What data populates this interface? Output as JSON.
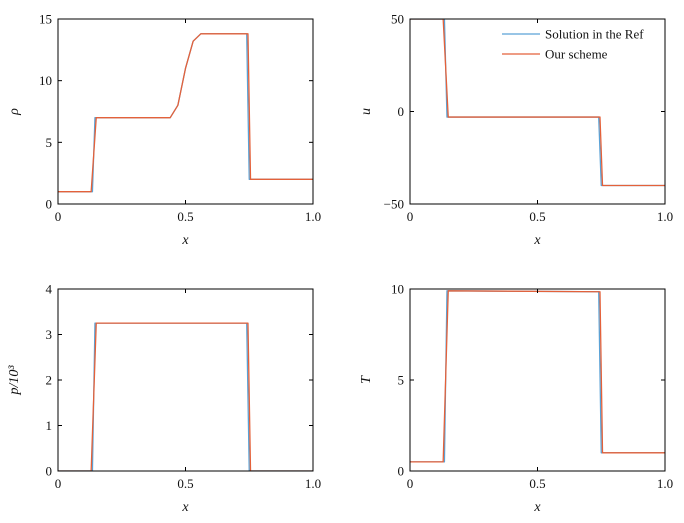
{
  "colors": {
    "ref": "#5aa2d6",
    "ours": "#e4613a"
  },
  "chart_data": [
    {
      "type": "line",
      "panel": "rho",
      "xlabel": "x",
      "ylabel": "ρ",
      "xlim": [
        0,
        1
      ],
      "ylim": [
        0,
        15
      ],
      "xticks": [
        0,
        0.5,
        1
      ],
      "xtick_labels": [
        "0",
        "0.5",
        "1.0"
      ],
      "yticks": [
        0,
        5,
        10,
        15
      ],
      "ytick_labels": [
        "0",
        "5",
        "10",
        "15"
      ],
      "legend": null,
      "series": [
        {
          "name": "Solution in the Ref",
          "color_key": "ref",
          "x": [
            0,
            0.135,
            0.145,
            0.44,
            0.47,
            0.5,
            0.53,
            0.56,
            0.73,
            0.74,
            0.75,
            1.0
          ],
          "y": [
            1.0,
            1.0,
            7.0,
            7.0,
            8.0,
            11.0,
            13.2,
            13.8,
            13.8,
            13.8,
            2.0,
            2.0
          ]
        },
        {
          "name": "Our scheme",
          "color_key": "ours",
          "x": [
            0,
            0.13,
            0.15,
            0.44,
            0.47,
            0.5,
            0.53,
            0.56,
            0.73,
            0.745,
            0.755,
            1.0
          ],
          "y": [
            1.0,
            1.0,
            7.0,
            7.0,
            8.0,
            11.0,
            13.2,
            13.8,
            13.8,
            13.8,
            2.0,
            2.0
          ]
        }
      ]
    },
    {
      "type": "line",
      "panel": "u",
      "xlabel": "x",
      "ylabel": "u",
      "xlim": [
        0,
        1
      ],
      "ylim": [
        -50,
        50
      ],
      "xticks": [
        0,
        0.5,
        1
      ],
      "xtick_labels": [
        "0",
        "0.5",
        "1.0"
      ],
      "yticks": [
        -50,
        0,
        50
      ],
      "ytick_labels": [
        "−50",
        "0",
        "50"
      ],
      "legend": {
        "position": "top-right",
        "entries": [
          "Solution in the Ref",
          "Our scheme"
        ]
      },
      "series": [
        {
          "name": "Solution in the Ref",
          "color_key": "ref",
          "x": [
            0,
            0.135,
            0.145,
            0.74,
            0.75,
            1.0
          ],
          "y": [
            50,
            50,
            -3,
            -3,
            -40,
            -40
          ]
        },
        {
          "name": "Our scheme",
          "color_key": "ours",
          "x": [
            0,
            0.13,
            0.15,
            0.745,
            0.755,
            1.0
          ],
          "y": [
            50,
            50,
            -3,
            -3,
            -40,
            -40
          ]
        }
      ]
    },
    {
      "type": "line",
      "panel": "p",
      "xlabel": "x",
      "ylabel": "p/10³",
      "xlim": [
        0,
        1
      ],
      "ylim": [
        0,
        4
      ],
      "xticks": [
        0,
        0.5,
        1
      ],
      "xtick_labels": [
        "0",
        "0.5",
        "1.0"
      ],
      "yticks": [
        0,
        1,
        2,
        3,
        4
      ],
      "ytick_labels": [
        "0",
        "1",
        "2",
        "3",
        "4"
      ],
      "legend": null,
      "series": [
        {
          "name": "Solution in the Ref",
          "color_key": "ref",
          "x": [
            0,
            0.135,
            0.145,
            0.74,
            0.75,
            1.0
          ],
          "y": [
            0,
            0,
            3.25,
            3.25,
            0,
            0
          ]
        },
        {
          "name": "Our scheme",
          "color_key": "ours",
          "x": [
            0,
            0.13,
            0.15,
            0.745,
            0.755,
            1.0
          ],
          "y": [
            0,
            0,
            3.25,
            3.25,
            0,
            0
          ]
        }
      ]
    },
    {
      "type": "line",
      "panel": "T",
      "xlabel": "x",
      "ylabel": "T",
      "xlim": [
        0,
        1
      ],
      "ylim": [
        0,
        10
      ],
      "xticks": [
        0,
        0.5,
        1
      ],
      "xtick_labels": [
        "0",
        "0.5",
        "1.0"
      ],
      "yticks": [
        0,
        5,
        10
      ],
      "ytick_labels": [
        "0",
        "5",
        "10"
      ],
      "legend": null,
      "series": [
        {
          "name": "Solution in the Ref",
          "color_key": "ref",
          "x": [
            0,
            0.135,
            0.145,
            0.74,
            0.75,
            1.0
          ],
          "y": [
            0.5,
            0.5,
            9.9,
            9.85,
            1.0,
            1.0
          ]
        },
        {
          "name": "Our scheme",
          "color_key": "ours",
          "x": [
            0,
            0.13,
            0.15,
            0.745,
            0.755,
            1.0
          ],
          "y": [
            0.5,
            0.5,
            9.9,
            9.85,
            1.0,
            1.0
          ]
        }
      ]
    }
  ]
}
